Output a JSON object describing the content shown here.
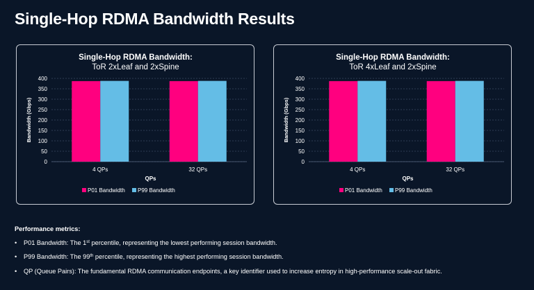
{
  "page": {
    "title": "Single-Hop RDMA Bandwidth Results"
  },
  "colors": {
    "p01": "#ff007f",
    "p99": "#64bde6",
    "background": "#0a1628",
    "card_border": "#c8ccd4",
    "grid": "#3a4a63"
  },
  "chart_data": [
    {
      "type": "bar",
      "title": "Single-Hop RDMA Bandwidth:",
      "subtitle": "ToR 2xLeaf and 2xSpine",
      "xlabel": "QPs",
      "ylabel": "Bandwidth (Gbps)",
      "categories": [
        "4 QPs",
        "32 QPs"
      ],
      "ylim": [
        0,
        400
      ],
      "yticks": [
        0,
        50,
        100,
        150,
        200,
        250,
        300,
        350,
        400
      ],
      "grid": true,
      "legend_position": "bottom",
      "series": [
        {
          "name": "P01 Bandwidth",
          "color": "#ff007f",
          "values": [
            387,
            387
          ]
        },
        {
          "name": "P99 Bandwidth",
          "color": "#64bde6",
          "values": [
            388,
            388
          ]
        }
      ]
    },
    {
      "type": "bar",
      "title": "Single-Hop RDMA Bandwidth:",
      "subtitle": "ToR 4xLeaf and 2xSpine",
      "xlabel": "QPs",
      "ylabel": "Bandwidth (Gbps)",
      "categories": [
        "4 QPs",
        "32 QPs"
      ],
      "ylim": [
        0,
        400
      ],
      "yticks": [
        0,
        50,
        100,
        150,
        200,
        250,
        300,
        350,
        400
      ],
      "grid": true,
      "legend_position": "bottom",
      "series": [
        {
          "name": "P01 Bandwidth",
          "color": "#ff007f",
          "values": [
            387,
            387
          ]
        },
        {
          "name": "P99 Bandwidth",
          "color": "#64bde6",
          "values": [
            388,
            388
          ]
        }
      ]
    }
  ],
  "metrics": {
    "heading": "Performance metrics:",
    "items": [
      {
        "pre": "P01 Bandwidth: The 1",
        "sup": "st",
        "post": " percentile, representing the lowest performing session bandwidth."
      },
      {
        "pre": "P99 Bandwidth: The 99",
        "sup": "th",
        "post": " percentile, representing the highest performing session bandwidth."
      },
      {
        "pre": "QP (Queue Pairs): The fundamental RDMA communication endpoints, a key identifier used to increase entropy in high-performance scale-out fabric.",
        "sup": "",
        "post": ""
      }
    ]
  }
}
